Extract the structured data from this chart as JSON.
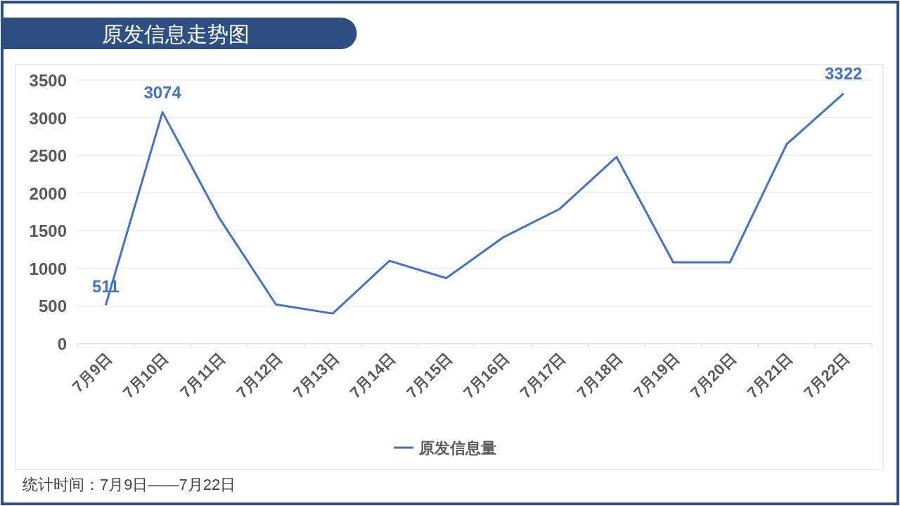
{
  "chart_data": {
    "type": "line",
    "title": "原发信息走势图",
    "categories": [
      "7月9日",
      "7月10日",
      "7月11日",
      "7月12日",
      "7月13日",
      "7月14日",
      "7月15日",
      "7月16日",
      "7月17日",
      "7月18日",
      "7月19日",
      "7月20日",
      "7月21日",
      "7月22日"
    ],
    "series": [
      {
        "name": "原发信息量",
        "color": "#4472c4",
        "values": [
          511,
          3074,
          1670,
          520,
          400,
          1100,
          870,
          1410,
          1790,
          2480,
          1080,
          1080,
          2650,
          3322
        ],
        "value_labels": [
          "511",
          "3074",
          null,
          null,
          null,
          null,
          null,
          null,
          null,
          null,
          null,
          null,
          null,
          "3322"
        ]
      }
    ],
    "ylim": [
      0,
      3500
    ],
    "yticks": [
      0,
      500,
      1000,
      1500,
      2000,
      2500,
      3000,
      3500
    ],
    "grid": "y",
    "legend": "bottom",
    "marker": "none",
    "line_style": "solid",
    "annotations": [
      "统计时间：7月9日——7月22日"
    ]
  }
}
